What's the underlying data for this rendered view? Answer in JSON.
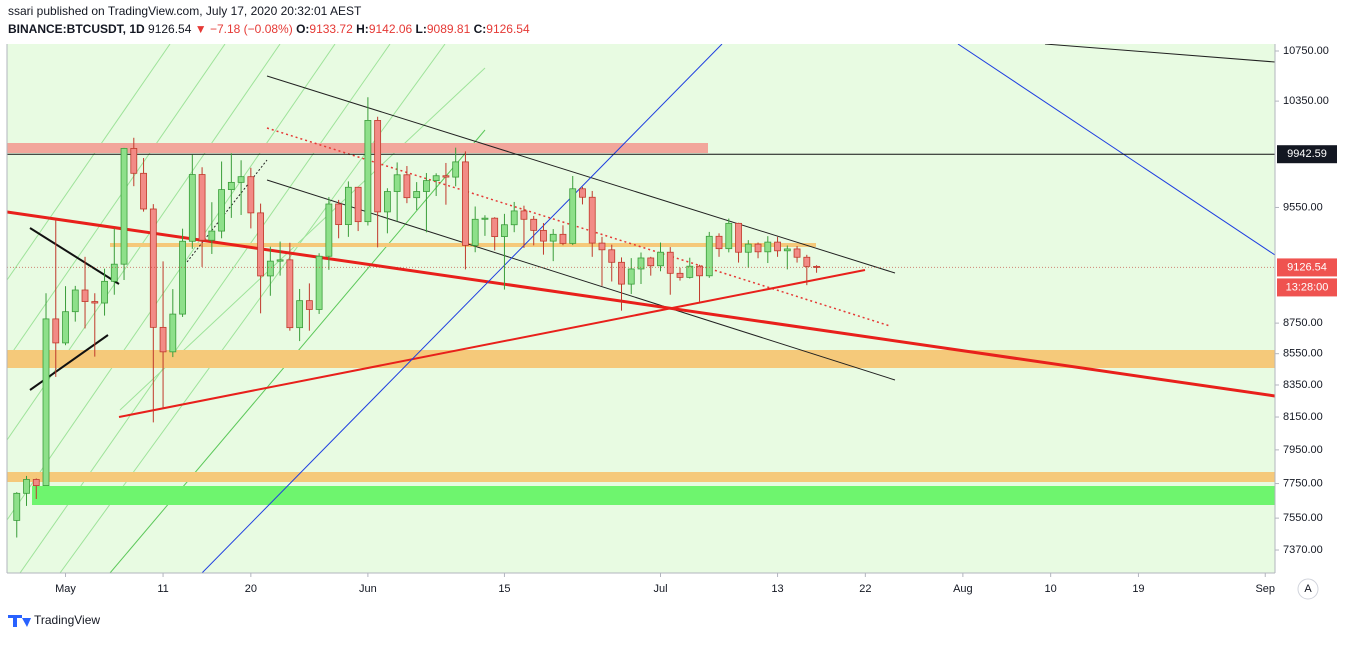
{
  "header": {
    "publisher": "ssari published on TradingView.com, July 17, 2020 20:32:01 AEST",
    "symbol": "BINANCE:BTCUSDT, 1D",
    "arrow": "▼",
    "change": "−7.18 (−0.08%)",
    "o_label": "O:",
    "h_label": "H:",
    "l_label": "L:",
    "c_label": "C:"
  },
  "chart_data": {
    "type": "candlestick",
    "log": true,
    "grid": false,
    "up_color": "#8ee08a",
    "up_edge": "#3a9d3a",
    "down_color": "#f28b86",
    "down_edge": "#c0392b",
    "x": [
      "2020-04-26",
      "2020-04-27",
      "2020-04-28",
      "2020-04-29",
      "2020-04-30",
      "2020-05-01",
      "2020-05-02",
      "2020-05-03",
      "2020-05-04",
      "2020-05-05",
      "2020-05-06",
      "2020-05-07",
      "2020-05-08",
      "2020-05-09",
      "2020-05-10",
      "2020-05-11",
      "2020-05-12",
      "2020-05-13",
      "2020-05-14",
      "2020-05-15",
      "2020-05-16",
      "2020-05-17",
      "2020-05-18",
      "2020-05-19",
      "2020-05-20",
      "2020-05-21",
      "2020-05-22",
      "2020-05-23",
      "2020-05-24",
      "2020-05-25",
      "2020-05-26",
      "2020-05-27",
      "2020-05-28",
      "2020-05-29",
      "2020-05-30",
      "2020-05-31",
      "2020-06-01",
      "2020-06-02",
      "2020-06-03",
      "2020-06-04",
      "2020-06-05",
      "2020-06-06",
      "2020-06-07",
      "2020-06-08",
      "2020-06-09",
      "2020-06-10",
      "2020-06-11",
      "2020-06-12",
      "2020-06-13",
      "2020-06-14",
      "2020-06-15",
      "2020-06-16",
      "2020-06-17",
      "2020-06-18",
      "2020-06-19",
      "2020-06-20",
      "2020-06-21",
      "2020-06-22",
      "2020-06-23",
      "2020-06-24",
      "2020-06-25",
      "2020-06-26",
      "2020-06-27",
      "2020-06-28",
      "2020-06-29",
      "2020-06-30",
      "2020-07-01",
      "2020-07-02",
      "2020-07-03",
      "2020-07-04",
      "2020-07-05",
      "2020-07-06",
      "2020-07-07",
      "2020-07-08",
      "2020-07-09",
      "2020-07-10",
      "2020-07-11",
      "2020-07-12",
      "2020-07-13",
      "2020-07-14",
      "2020-07-15",
      "2020-07-16",
      "2020-07-17"
    ],
    "open": [
      7537,
      7693,
      7774,
      7738,
      8778,
      8620,
      8826,
      8972,
      8894,
      8884,
      9031,
      9149,
      9986,
      9800,
      9539,
      8722,
      8562,
      8810,
      9309,
      9791,
      9316,
      9381,
      9680,
      9733,
      9775,
      9511,
      9068,
      9170,
      9179,
      8720,
      8900,
      8841,
      9204,
      9575,
      9427,
      9697,
      9448,
      10200,
      9518,
      9666,
      9789,
      9621,
      9666,
      9746,
      9782,
      9772,
      9885,
      9280,
      9465,
      9473,
      9342,
      9426,
      9525,
      9465,
      9386,
      9310,
      9358,
      9294,
      9686,
      9624,
      9296,
      9249,
      9162,
      9012,
      9116,
      9192,
      9138,
      9232,
      9086,
      9058,
      9135,
      9069,
      9344,
      9257,
      9436,
      9232,
      9289,
      9235,
      9303,
      9242,
      9255,
      9197,
      9133.72
    ],
    "high": [
      7700,
      7795,
      7780,
      8950,
      9460,
      8998,
      9000,
      9200,
      8950,
      9118,
      9400,
      9990,
      10067,
      9914,
      9574,
      9168,
      8978,
      9398,
      9939,
      9845,
      9588,
      9888,
      9950,
      9897,
      9841,
      9578,
      9271,
      9307,
      9298,
      8979,
      9017,
      9225,
      9625,
      9605,
      9740,
      9700,
      10380,
      10228,
      9690,
      9881,
      9854,
      9735,
      9802,
      9800,
      9877,
      9992,
      9964,
      9557,
      9494,
      9480,
      9504,
      9590,
      9563,
      9489,
      9438,
      9395,
      9422,
      9780,
      9700,
      9670,
      9340,
      9285,
      9196,
      9191,
      9230,
      9200,
      9300,
      9268,
      9125,
      9194,
      9145,
      9375,
      9365,
      9470,
      9440,
      9317,
      9300,
      9345,
      9340,
      9279,
      9275,
      9214,
      9142.06
    ],
    "low": [
      7440,
      7620,
      7660,
      7737,
      8401,
      8605,
      8760,
      8715,
      8531,
      8800,
      8940,
      9040,
      9705,
      9520,
      8117,
      8200,
      8528,
      8791,
      9256,
      9130,
      9220,
      9330,
      9475,
      9496,
      9400,
      8815,
      8933,
      9070,
      8700,
      8632,
      8700,
      8811,
      9110,
      9330,
      9340,
      9381,
      9421,
      9266,
      9365,
      9450,
      9581,
      9531,
      9372,
      9633,
      9570,
      9704,
      9113,
      9232,
      9347,
      9245,
      8975,
      9373,
      9262,
      9280,
      9215,
      9170,
      9281,
      9282,
      9572,
      9200,
      9000,
      9030,
      8833,
      8945,
      9013,
      9070,
      9100,
      8940,
      9036,
      9050,
      8893,
      9055,
      9200,
      9231,
      9160,
      9125,
      9190,
      9157,
      9200,
      9113,
      9160,
      9005,
      9089.81
    ],
    "close": [
      7693,
      7774,
      7738,
      8778,
      8620,
      8826,
      8972,
      8894,
      8884,
      9031,
      9149,
      9986,
      9800,
      9539,
      8722,
      8562,
      8810,
      9309,
      9791,
      9316,
      9381,
      9680,
      9733,
      9775,
      9511,
      9068,
      9170,
      9179,
      8720,
      8900,
      8841,
      9204,
      9575,
      9427,
      9697,
      9448,
      10200,
      9518,
      9666,
      9789,
      9621,
      9666,
      9746,
      9782,
      9772,
      9885,
      9280,
      9465,
      9473,
      9342,
      9426,
      9525,
      9465,
      9386,
      9310,
      9358,
      9294,
      9686,
      9624,
      9296,
      9249,
      9162,
      9012,
      9116,
      9192,
      9138,
      9232,
      9086,
      9058,
      9135,
      9069,
      9344,
      9257,
      9436,
      9232,
      9289,
      9235,
      9303,
      9242,
      9255,
      9197,
      9133.72,
      9126.54
    ],
    "last_label": "9126.54",
    "countdown": "13:28:00",
    "hline": 9942.59,
    "xlim": [
      "2020-04-25",
      "2020-09-02"
    ],
    "xticks": [
      {
        "value": "2020-05-01",
        "label": "May"
      },
      {
        "value": "2020-05-11",
        "label": "11"
      },
      {
        "value": "2020-05-20",
        "label": "20"
      },
      {
        "value": "2020-06-01",
        "label": "Jun"
      },
      {
        "value": "2020-06-15",
        "label": "15"
      },
      {
        "value": "2020-07-01",
        "label": "Jul"
      },
      {
        "value": "2020-07-13",
        "label": "13"
      },
      {
        "value": "2020-07-22",
        "label": "22"
      },
      {
        "value": "2020-08-01",
        "label": "Aug"
      },
      {
        "value": "2020-08-10",
        "label": "10"
      },
      {
        "value": "2020-08-19",
        "label": "19"
      },
      {
        "value": "2020-09-01",
        "label": "Sep"
      }
    ],
    "ylim": [
      7243,
      10807
    ],
    "yticks": [
      {
        "value": 10750,
        "label": "10750.00"
      },
      {
        "value": 10350,
        "label": "10350.00"
      },
      {
        "value": 9550,
        "label": "9550.00"
      },
      {
        "value": 8750,
        "label": "8750.00"
      },
      {
        "value": 8550,
        "label": "8550.00"
      },
      {
        "value": 8350,
        "label": "8350.00"
      },
      {
        "value": 8150,
        "label": "8150.00"
      },
      {
        "value": 7950,
        "label": "7950.00"
      },
      {
        "value": 7750,
        "label": "7750.00"
      },
      {
        "value": 7550,
        "label": "7550.00"
      },
      {
        "value": 7370,
        "label": "7370.00"
      }
    ]
  },
  "footer": {
    "brand": "TradingView",
    "auto_button": "A"
  }
}
